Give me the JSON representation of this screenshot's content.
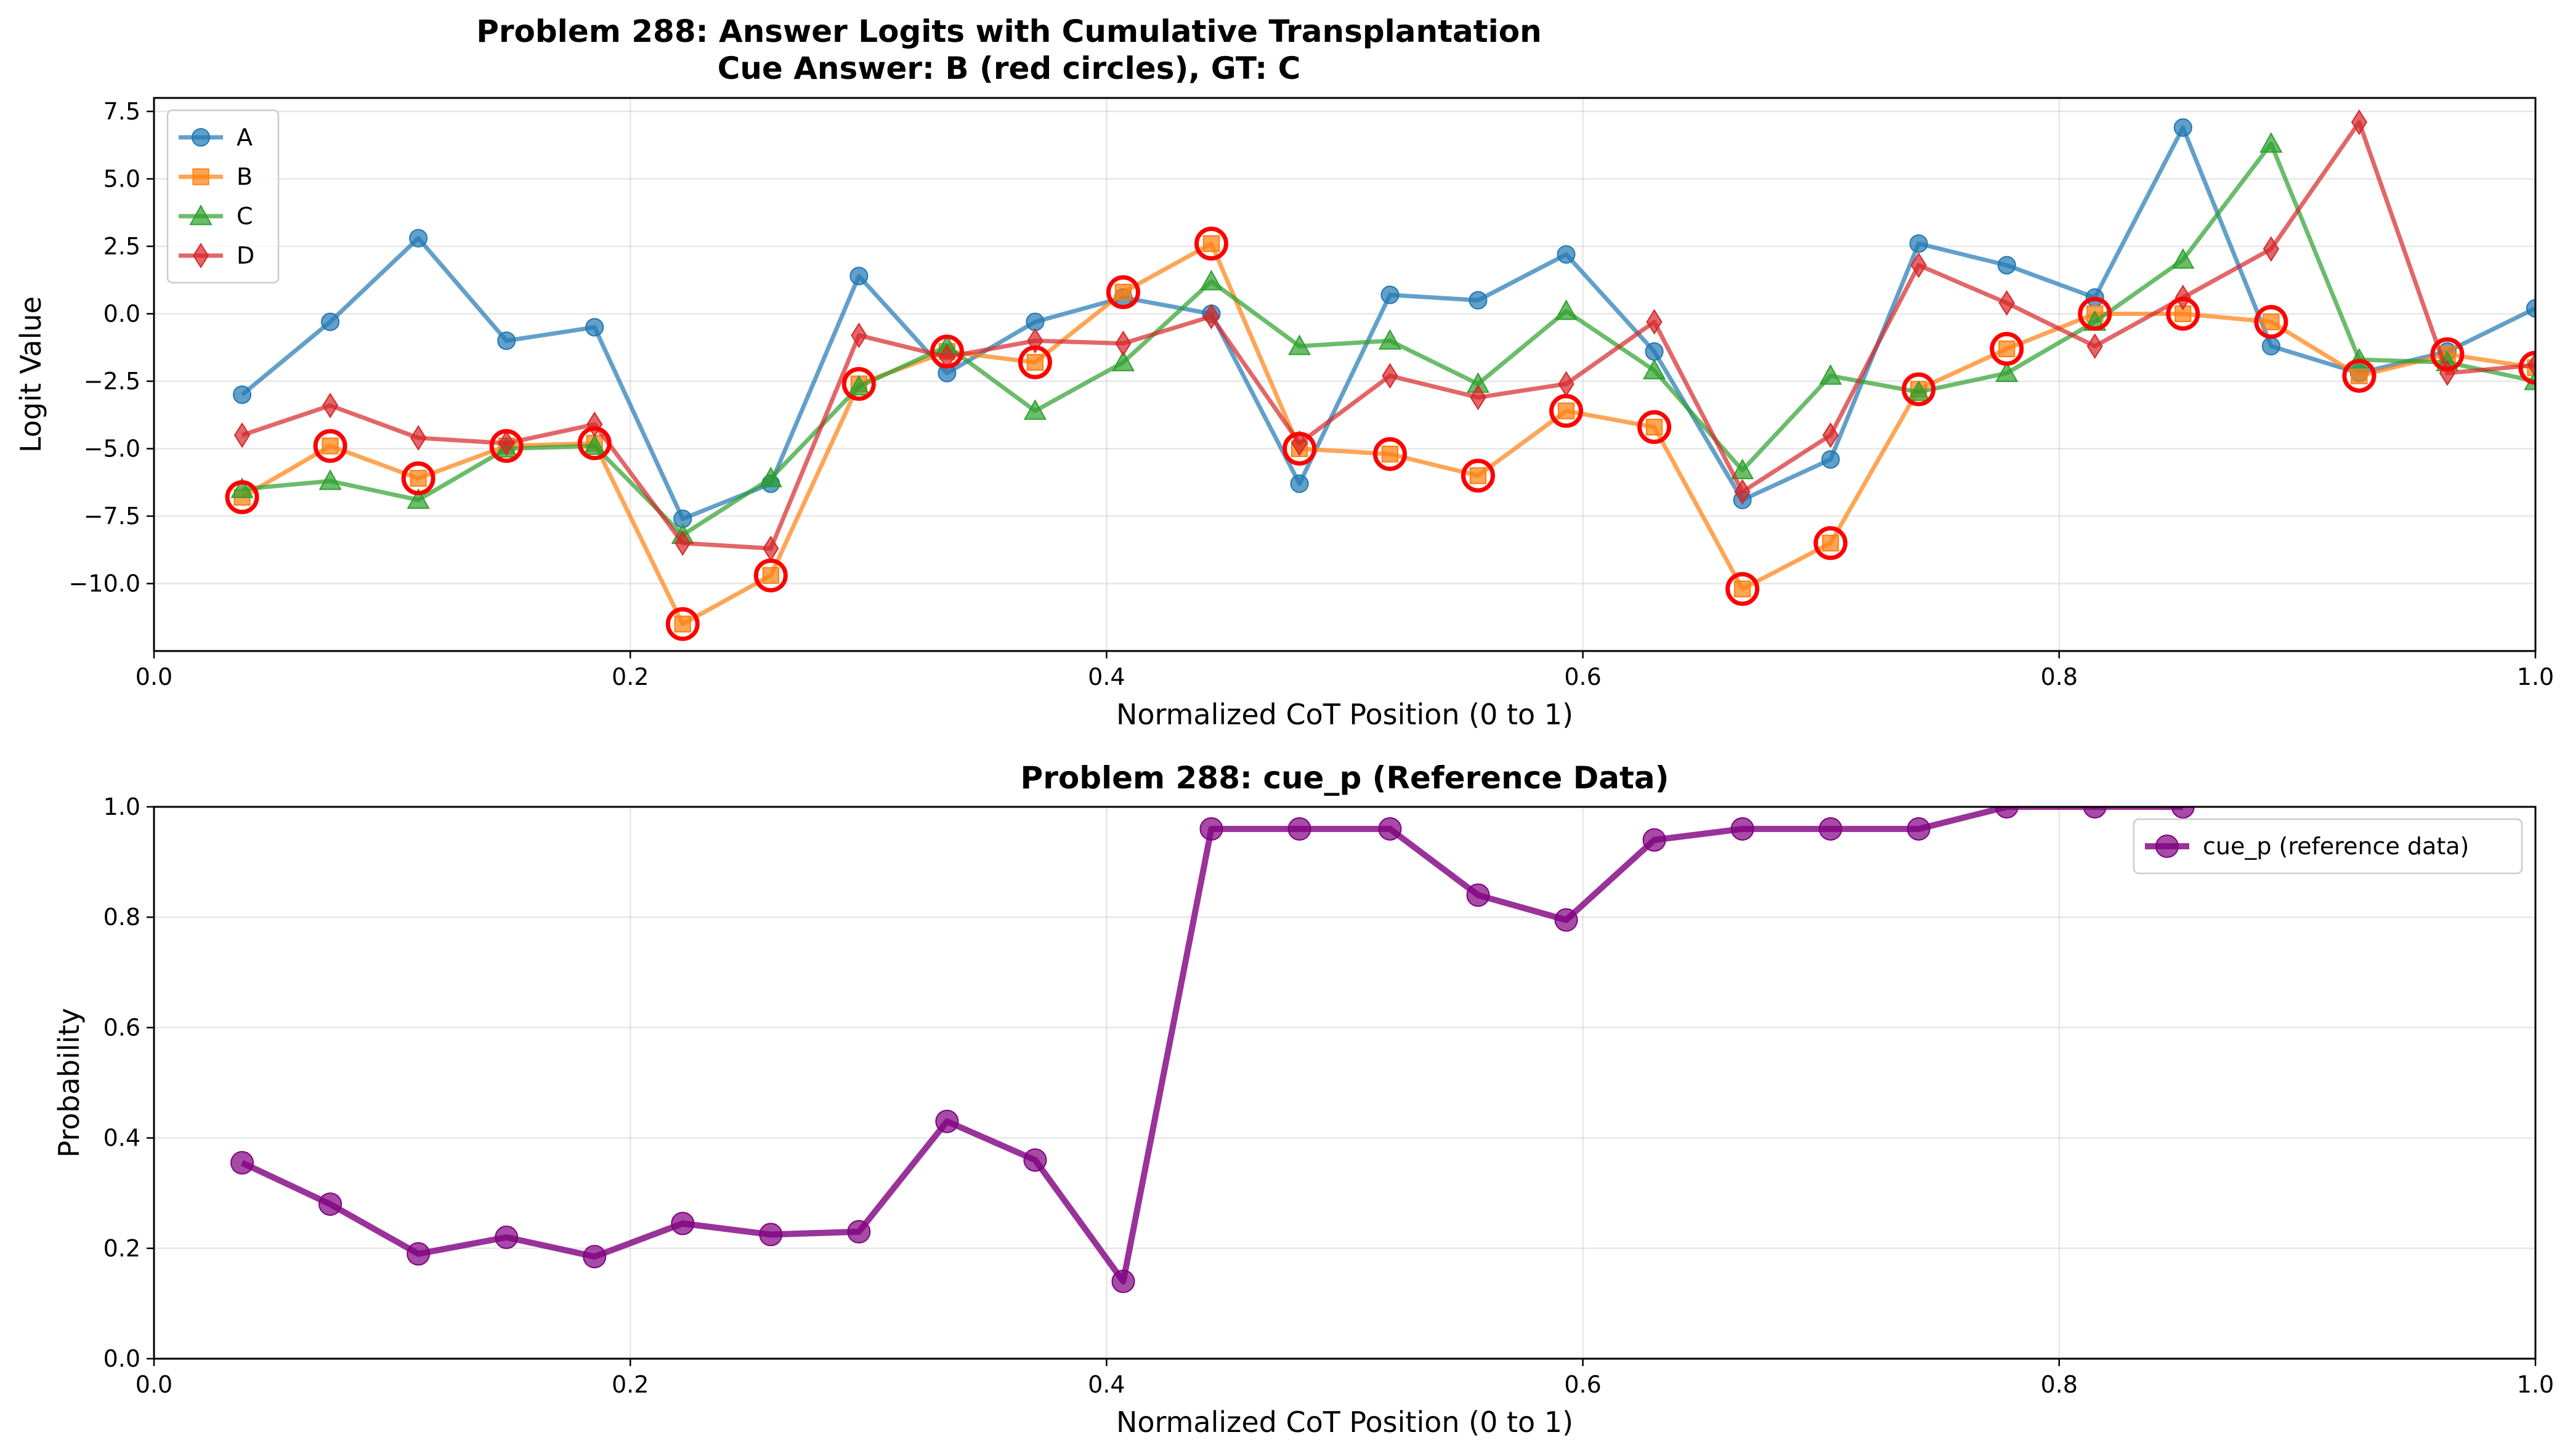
{
  "chart_data": [
    {
      "type": "line",
      "title_line1": "Problem 288: Answer Logits with Cumulative Transplantation",
      "title_line2": "Cue Answer: B (red circles), GT: C",
      "xlabel": "Normalized CoT Position (0 to 1)",
      "ylabel": "Logit Value",
      "xlim": [
        0.0,
        1.0
      ],
      "ylim": [
        -12.5,
        8.0
      ],
      "xticks": [
        0.0,
        0.2,
        0.4,
        0.6,
        0.8,
        1.0
      ],
      "xtick_labels": [
        "0.0",
        "0.2",
        "0.4",
        "0.6",
        "0.8",
        "1.0"
      ],
      "yticks": [
        -10.0,
        -7.5,
        -5.0,
        -2.5,
        0.0,
        2.5,
        5.0,
        7.5
      ],
      "ytick_labels": [
        "−10.0",
        "−7.5",
        "−5.0",
        "−2.5",
        "0.0",
        "2.5",
        "5.0",
        "7.5"
      ],
      "grid": true,
      "legend_position": "upper-left",
      "x": [
        0.037,
        0.074,
        0.111,
        0.148,
        0.185,
        0.222,
        0.259,
        0.296,
        0.333,
        0.37,
        0.407,
        0.444,
        0.481,
        0.519,
        0.556,
        0.593,
        0.63,
        0.667,
        0.704,
        0.741,
        0.778,
        0.815,
        0.852,
        0.889,
        0.926,
        0.963,
        1.0
      ],
      "series": [
        {
          "name": "A",
          "color": "#1f77b4",
          "marker": "circle",
          "values": [
            -3.0,
            -0.3,
            2.8,
            -1.0,
            -0.5,
            -7.6,
            -6.3,
            1.4,
            -2.2,
            -0.3,
            0.6,
            0.0,
            -6.3,
            0.7,
            0.5,
            2.2,
            -1.4,
            -6.9,
            -5.4,
            2.6,
            1.8,
            0.6,
            6.9,
            -1.2,
            -2.2,
            -1.4,
            0.2
          ]
        },
        {
          "name": "B",
          "color": "#ff7f0e",
          "marker": "square",
          "values": [
            -6.8,
            -4.9,
            -6.1,
            -4.9,
            -4.8,
            -11.5,
            -9.7,
            -2.6,
            -1.4,
            -1.8,
            0.8,
            2.6,
            -5.0,
            -5.2,
            -6.0,
            -3.6,
            -4.2,
            -10.2,
            -8.5,
            -2.8,
            -1.3,
            0.0,
            0.0,
            -0.3,
            -2.3,
            -1.5,
            -2.0
          ]
        },
        {
          "name": "C",
          "color": "#2ca02c",
          "marker": "triangle",
          "values": [
            -6.5,
            -6.2,
            -6.9,
            -5.0,
            -4.9,
            -8.2,
            -6.1,
            -2.7,
            -1.2,
            -3.6,
            -1.8,
            1.2,
            -1.2,
            -1.0,
            -2.6,
            0.1,
            -2.1,
            -5.8,
            -2.3,
            -2.9,
            -2.2,
            -0.3,
            2.0,
            6.3,
            -1.7,
            -1.8,
            -2.5
          ]
        },
        {
          "name": "D",
          "color": "#d62728",
          "marker": "diamond",
          "values": [
            -4.5,
            -3.4,
            -4.6,
            -4.8,
            -4.1,
            -8.5,
            -8.7,
            -0.8,
            -1.6,
            -1.0,
            -1.1,
            -0.1,
            -4.8,
            -2.3,
            -3.1,
            -2.6,
            -0.3,
            -6.6,
            -4.5,
            1.8,
            0.4,
            -1.2,
            0.6,
            2.4,
            7.1,
            -2.2,
            -1.9
          ]
        }
      ],
      "cue_circles": {
        "series": "B",
        "color": "#ff0000"
      }
    },
    {
      "type": "line",
      "title": "Problem 288: cue_p (Reference Data)",
      "xlabel": "Normalized CoT Position (0 to 1)",
      "ylabel": "Probability",
      "xlim": [
        0.0,
        1.0
      ],
      "ylim": [
        0.0,
        1.0
      ],
      "xticks": [
        0.0,
        0.2,
        0.4,
        0.6,
        0.8,
        1.0
      ],
      "xtick_labels": [
        "0.0",
        "0.2",
        "0.4",
        "0.6",
        "0.8",
        "1.0"
      ],
      "yticks": [
        0.0,
        0.2,
        0.4,
        0.6,
        0.8,
        1.0
      ],
      "ytick_labels": [
        "0.0",
        "0.2",
        "0.4",
        "0.6",
        "0.8",
        "1.0"
      ],
      "grid": true,
      "legend_position": "upper-right",
      "x": [
        0.037,
        0.074,
        0.111,
        0.148,
        0.185,
        0.222,
        0.259,
        0.296,
        0.333,
        0.37,
        0.407,
        0.444,
        0.481,
        0.519,
        0.556,
        0.593,
        0.63,
        0.667,
        0.704,
        0.741,
        0.778,
        0.815,
        0.852
      ],
      "series": [
        {
          "name": "cue_p (reference data)",
          "color": "#800080",
          "marker": "circle",
          "values": [
            0.355,
            0.28,
            0.19,
            0.22,
            0.185,
            0.245,
            0.225,
            0.23,
            0.43,
            0.36,
            0.14,
            0.96,
            0.96,
            0.96,
            0.84,
            0.795,
            0.94,
            0.96,
            0.96,
            0.96,
            1.0,
            1.0,
            1.0
          ]
        }
      ]
    }
  ]
}
